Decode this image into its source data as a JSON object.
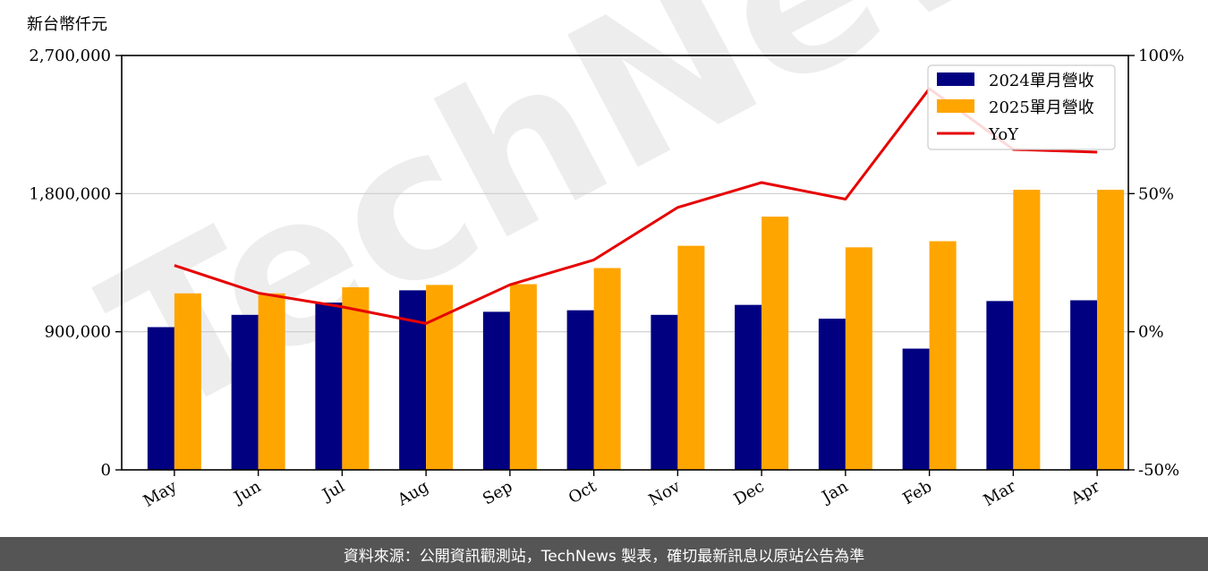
{
  "unit_label": "新台幣仟元",
  "watermark": "TechNews",
  "footer_note": "資料來源：公開資訊觀測站，TechNews 製表，確切最新訊息以原站公告為準",
  "colors": {
    "series_2024": "#000080",
    "series_2025": "#FFA500",
    "yoy": "#E60000",
    "grid": "#cccccc"
  },
  "chart_data": {
    "type": "bar",
    "categories": [
      "May",
      "Jun",
      "Jul",
      "Aug",
      "Sep",
      "Oct",
      "Nov",
      "Dec",
      "Jan",
      "Feb",
      "Mar",
      "Apr"
    ],
    "series": [
      {
        "name": "2024單月營收",
        "type": "bar",
        "axis": "left",
        "values": [
          930000,
          1010000,
          1090000,
          1170000,
          1030000,
          1040000,
          1010000,
          1075000,
          985000,
          790000,
          1100000,
          1105000
        ]
      },
      {
        "name": "2025單月營收",
        "type": "bar",
        "axis": "left",
        "values": [
          1150000,
          1150000,
          1190000,
          1205000,
          1210000,
          1315000,
          1460000,
          1650000,
          1450000,
          1490000,
          1825000,
          1825000
        ]
      },
      {
        "name": "YoY",
        "type": "line",
        "axis": "right",
        "values": [
          24,
          14,
          9,
          3,
          17,
          26,
          45,
          54,
          48,
          88,
          66,
          65
        ]
      }
    ],
    "left_axis": {
      "min": 0,
      "max": 2700000,
      "ticks": [
        0,
        900000,
        1800000,
        2700000
      ],
      "tick_labels": [
        "0",
        "900,000",
        "1,800,000",
        "2,700,000"
      ]
    },
    "right_axis": {
      "min": -50,
      "max": 100,
      "ticks": [
        -50,
        0,
        50,
        100
      ],
      "tick_labels": [
        "-50%",
        "0%",
        "50%",
        "100%"
      ]
    },
    "grid": "horizontal",
    "legend_position": "top-right"
  }
}
